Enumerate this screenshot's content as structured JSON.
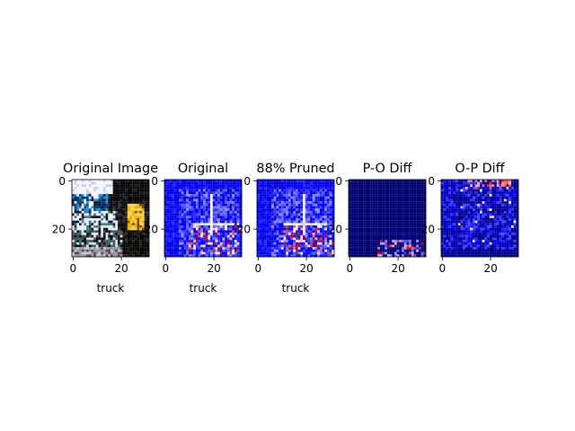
{
  "chart_data": [
    {
      "type": "heatmap",
      "title": "Original Image",
      "xlabel": "truck",
      "ylabel": "",
      "xticks": [
        "0",
        "20"
      ],
      "yticks": [
        "0",
        "20"
      ],
      "xlim": [
        0,
        32
      ],
      "ylim": [
        32,
        0
      ],
      "image_kind": "rgb-photo"
    },
    {
      "type": "heatmap",
      "title": "Original",
      "xlabel": "truck",
      "ylabel": "",
      "xticks": [
        "0",
        "20"
      ],
      "yticks": [
        "0",
        "20"
      ],
      "xlim": [
        0,
        32
      ],
      "ylim": [
        32,
        0
      ],
      "image_kind": "saliency-map",
      "colormap": "seismic"
    },
    {
      "type": "heatmap",
      "title": "88% Pruned",
      "xlabel": "truck",
      "ylabel": "",
      "xticks": [
        "0",
        "20"
      ],
      "yticks": [
        "0",
        "20"
      ],
      "xlim": [
        0,
        32
      ],
      "ylim": [
        32,
        0
      ],
      "image_kind": "saliency-map",
      "colormap": "seismic"
    },
    {
      "type": "heatmap",
      "title": "P-O Diff",
      "xlabel": "",
      "ylabel": "",
      "xticks": [
        "0",
        "20"
      ],
      "yticks": [
        "0",
        "20"
      ],
      "xlim": [
        0,
        32
      ],
      "ylim": [
        32,
        0
      ],
      "image_kind": "difference-map",
      "colormap": "seismic"
    },
    {
      "type": "heatmap",
      "title": "O-P Diff",
      "xlabel": "",
      "ylabel": "",
      "xticks": [
        "0",
        "20"
      ],
      "yticks": [
        "0",
        "20"
      ],
      "xlim": [
        0,
        32
      ],
      "ylim": [
        32,
        0
      ],
      "image_kind": "difference-map",
      "colormap": "seismic"
    }
  ],
  "colors": {
    "background_dark_navy": "#00004c",
    "mid_blue": "#1e1ec8",
    "white": "#ffffff",
    "red": "#ff2020"
  }
}
